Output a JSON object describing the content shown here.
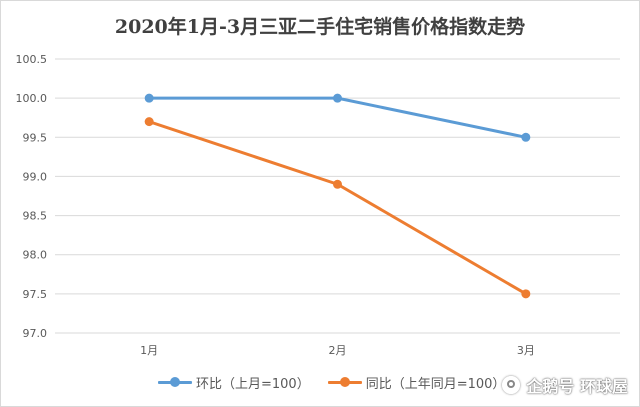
{
  "chart_data": {
    "type": "line",
    "title": "2020年1月-3月三亚二手住宅销售价格指数走势",
    "categories": [
      "1月",
      "2月",
      "3月"
    ],
    "series": [
      {
        "name": "环比（上月=100）",
        "values": [
          100.0,
          100.0,
          99.5
        ],
        "color": "#5b9bd5"
      },
      {
        "name": "同比（上年同月=100）",
        "values": [
          99.7,
          98.9,
          97.5
        ],
        "color": "#ed7d31"
      }
    ],
    "ylim": [
      97.0,
      100.5
    ],
    "yticks": [
      "97.0",
      "97.5",
      "98.0",
      "98.5",
      "99.0",
      "99.5",
      "100.0",
      "100.5"
    ],
    "grid": true,
    "legend_position": "bottom"
  },
  "watermark": {
    "text": "企鹅号 环球屋"
  }
}
